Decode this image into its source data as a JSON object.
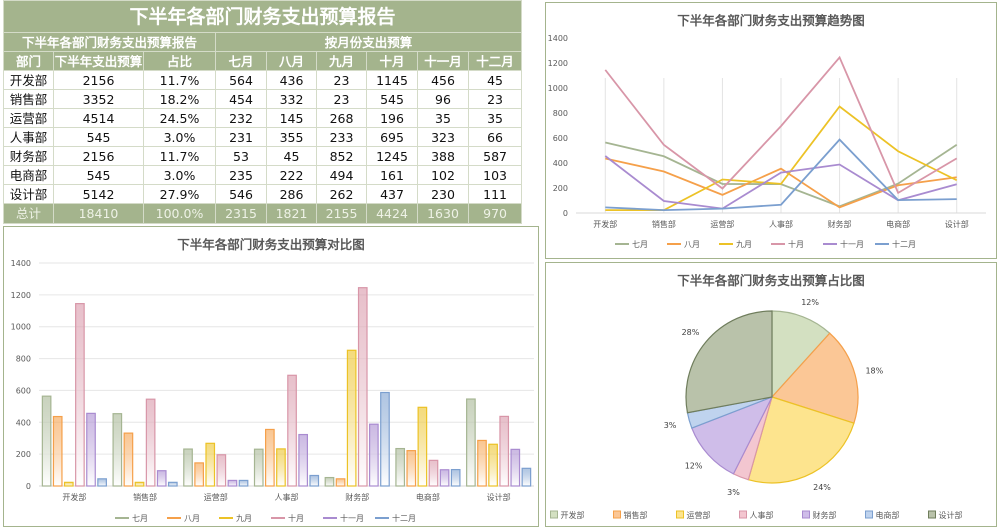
{
  "table": {
    "title": "下半年各部门财务支出预算报告",
    "group_left": "下半年各部门财务支出预算报告",
    "group_right": "按月份支出预算",
    "headers": [
      "部门",
      "下半年支出预算",
      "占比",
      "七月",
      "八月",
      "九月",
      "十月",
      "十一月",
      "十二月"
    ],
    "rows": [
      [
        "开发部",
        "2156",
        "11.7%",
        "564",
        "436",
        "23",
        "1145",
        "456",
        "45"
      ],
      [
        "销售部",
        "3352",
        "18.2%",
        "454",
        "332",
        "23",
        "545",
        "96",
        "23"
      ],
      [
        "运营部",
        "4514",
        "24.5%",
        "232",
        "145",
        "268",
        "196",
        "35",
        "35"
      ],
      [
        "人事部",
        "545",
        "3.0%",
        "231",
        "355",
        "233",
        "695",
        "323",
        "66"
      ],
      [
        "财务部",
        "2156",
        "11.7%",
        "53",
        "45",
        "852",
        "1245",
        "388",
        "587"
      ],
      [
        "电商部",
        "545",
        "3.0%",
        "235",
        "222",
        "494",
        "161",
        "102",
        "103"
      ],
      [
        "设计部",
        "5142",
        "27.9%",
        "546",
        "286",
        "262",
        "437",
        "230",
        "111"
      ]
    ],
    "total": [
      "总计",
      "18410",
      "100.0%",
      "2315",
      "1821",
      "2155",
      "4424",
      "1630",
      "970"
    ]
  },
  "chart_data": [
    {
      "type": "line",
      "title": "下半年各部门财务支出预算趋势图",
      "categories": [
        "开发部",
        "销售部",
        "运营部",
        "人事部",
        "财务部",
        "电商部",
        "设计部"
      ],
      "ylim": [
        0,
        1400
      ],
      "yticks": [
        "0",
        "200",
        "400",
        "600",
        "800",
        "1000",
        "1200",
        "1400"
      ],
      "legend": "bottom",
      "series": [
        {
          "name": "七月",
          "color": "#a5b592",
          "values": [
            564,
            454,
            232,
            231,
            53,
            235,
            546
          ]
        },
        {
          "name": "八月",
          "color": "#f5a04a",
          "values": [
            436,
            332,
            145,
            355,
            45,
            222,
            286
          ]
        },
        {
          "name": "九月",
          "color": "#ecc226",
          "values": [
            23,
            23,
            268,
            233,
            852,
            494,
            262
          ]
        },
        {
          "name": "十月",
          "color": "#d896a8",
          "values": [
            1145,
            545,
            196,
            695,
            1245,
            161,
            437
          ]
        },
        {
          "name": "十一月",
          "color": "#a98bd0",
          "values": [
            456,
            96,
            35,
            323,
            388,
            102,
            230
          ]
        },
        {
          "name": "十二月",
          "color": "#7b9fcf",
          "values": [
            45,
            23,
            35,
            66,
            587,
            103,
            111
          ]
        }
      ]
    },
    {
      "type": "bar",
      "title": "下半年各部门财务支出预算对比图",
      "categories": [
        "开发部",
        "销售部",
        "运营部",
        "人事部",
        "财务部",
        "电商部",
        "设计部"
      ],
      "ylim": [
        0,
        1400
      ],
      "yticks": [
        "0",
        "200",
        "400",
        "600",
        "800",
        "1000",
        "1200",
        "1400"
      ],
      "legend": "bottom",
      "series": [
        {
          "name": "七月",
          "color": "#a5b592",
          "values": [
            564,
            454,
            232,
            231,
            53,
            235,
            546
          ]
        },
        {
          "name": "八月",
          "color": "#f5a04a",
          "values": [
            436,
            332,
            145,
            355,
            45,
            222,
            286
          ]
        },
        {
          "name": "九月",
          "color": "#ecc226",
          "values": [
            23,
            23,
            268,
            233,
            852,
            494,
            262
          ]
        },
        {
          "name": "十月",
          "color": "#d896a8",
          "values": [
            1145,
            545,
            196,
            695,
            1245,
            161,
            437
          ]
        },
        {
          "name": "十一月",
          "color": "#a98bd0",
          "values": [
            456,
            96,
            35,
            323,
            388,
            102,
            230
          ]
        },
        {
          "name": "十二月",
          "color": "#7b9fcf",
          "values": [
            45,
            23,
            35,
            66,
            587,
            103,
            111
          ]
        }
      ]
    },
    {
      "type": "pie",
      "title": "下半年各部门财务支出预算占比图",
      "legend": "bottom",
      "labels": [
        "开发部",
        "销售部",
        "运营部",
        "人事部",
        "财务部",
        "电商部",
        "设计部"
      ],
      "values": [
        2156,
        3352,
        4514,
        545,
        2156,
        545,
        5142
      ],
      "data_labels": [
        "12%",
        "18%",
        "24%",
        "3%",
        "12%",
        "3%",
        "28%"
      ],
      "colors": [
        "#d3e0c1",
        "#fbc796",
        "#fde48e",
        "#f3c6d0",
        "#cfbde9",
        "#bfd3ee",
        "#b9c2aa"
      ],
      "edge_colors": [
        "#a5b592",
        "#f5a04a",
        "#ecc226",
        "#d896a8",
        "#a98bd0",
        "#7b9fcf",
        "#6f7d5c"
      ]
    }
  ]
}
